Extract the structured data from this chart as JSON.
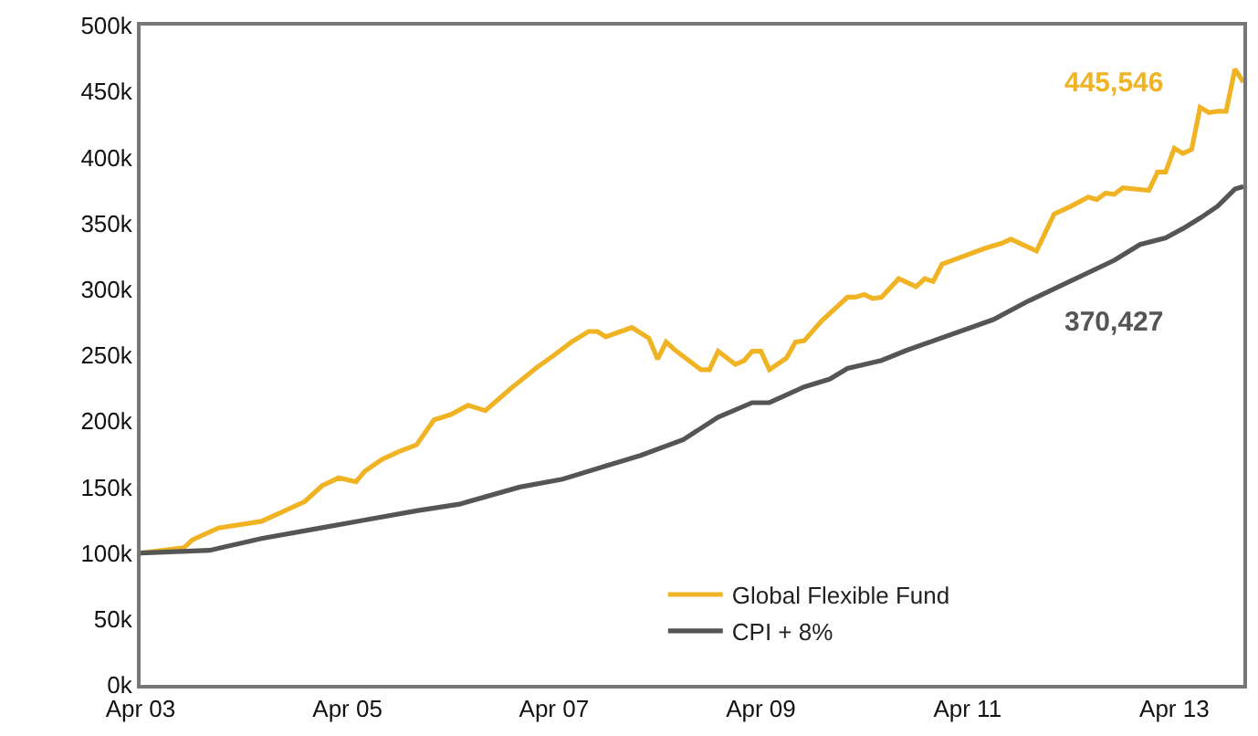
{
  "chart_data": {
    "type": "line",
    "xlim": [
      "2003-04-01",
      "2013-12-01"
    ],
    "xticks": [
      {
        "value": "2003-04-01",
        "label": "Apr 03"
      },
      {
        "value": "2005-04-01",
        "label": "Apr 05"
      },
      {
        "value": "2007-04-01",
        "label": "Apr 07"
      },
      {
        "value": "2009-04-01",
        "label": "Apr 09"
      },
      {
        "value": "2011-04-01",
        "label": "Apr 11"
      },
      {
        "value": "2013-04-01",
        "label": "Apr 13"
      }
    ],
    "ylim": [
      0,
      500000
    ],
    "yticks": [
      {
        "value": 0,
        "label": "0k"
      },
      {
        "value": 50000,
        "label": "50k"
      },
      {
        "value": 100000,
        "label": "100k"
      },
      {
        "value": 150000,
        "label": "150k"
      },
      {
        "value": 200000,
        "label": "200k"
      },
      {
        "value": 250000,
        "label": "250k"
      },
      {
        "value": 300000,
        "label": "300k"
      },
      {
        "value": 350000,
        "label": "350k"
      },
      {
        "value": 400000,
        "label": "400k"
      },
      {
        "value": 450000,
        "label": "450k"
      },
      {
        "value": 500000,
        "label": "500k"
      }
    ],
    "legend": "bottom right",
    "marker": "none",
    "line_style": "solid",
    "annotations": [
      "445,546",
      "370,427"
    ],
    "series": [
      {
        "name": "Global Flexible Fund",
        "color": "#f0b323",
        "x": [
          "2003-04",
          "2003-09",
          "2003-10",
          "2004-01",
          "2004-04",
          "2004-06",
          "2004-08",
          "2004-11",
          "2005-01",
          "2005-03",
          "2005-05",
          "2005-06",
          "2005-08",
          "2005-10",
          "2005-12",
          "2006-02",
          "2006-04",
          "2006-06",
          "2006-08",
          "2006-11",
          "2007-02",
          "2007-04",
          "2007-06",
          "2007-08",
          "2007-09",
          "2007-10",
          "2008-01",
          "2008-03",
          "2008-04",
          "2008-05",
          "2008-06",
          "2008-09",
          "2008-10",
          "2008-11",
          "2009-01",
          "2009-02",
          "2009-03",
          "2009-04",
          "2009-05",
          "2009-07",
          "2009-08",
          "2009-09",
          "2009-11",
          "2010-02",
          "2010-03",
          "2010-04",
          "2010-05",
          "2010-06",
          "2010-08",
          "2010-10",
          "2010-11",
          "2010-12",
          "2011-01",
          "2011-06",
          "2011-08",
          "2011-09",
          "2011-12",
          "2012-02",
          "2012-04",
          "2012-06",
          "2012-07",
          "2012-08",
          "2012-09",
          "2012-10",
          "2013-01",
          "2013-02",
          "2013-03",
          "2013-04",
          "2013-05",
          "2013-06",
          "2013-07",
          "2013-08",
          "2013-09",
          "2013-10",
          "2013-11",
          "2013-12"
        ],
        "values": [
          100000,
          104000,
          110000,
          119000,
          122000,
          124000,
          130000,
          139000,
          151000,
          157000,
          154000,
          162000,
          171000,
          177000,
          182000,
          201000,
          205000,
          212000,
          208000,
          225000,
          241000,
          250000,
          260000,
          268000,
          268000,
          264000,
          271000,
          263000,
          247000,
          260000,
          254000,
          239000,
          239000,
          253000,
          243000,
          246000,
          253000,
          253000,
          239000,
          248000,
          260000,
          261000,
          276000,
          294000,
          294000,
          296000,
          293000,
          294000,
          308000,
          302000,
          308000,
          306000,
          319000,
          331000,
          335000,
          338000,
          329000,
          357000,
          363000,
          370000,
          368000,
          373000,
          372000,
          377000,
          375000,
          389000,
          389000,
          407000,
          403000,
          406000,
          438000,
          434000,
          435000,
          435000,
          467000,
          457000
        ]
      },
      {
        "name": "CPI + 8%",
        "color": "#555555",
        "x": [
          "2003-04",
          "2003-12",
          "2004-06",
          "2004-12",
          "2005-06",
          "2005-12",
          "2006-05",
          "2006-12",
          "2007-05",
          "2007-10",
          "2008-02",
          "2008-07",
          "2008-11",
          "2009-03",
          "2009-05",
          "2009-09",
          "2009-12",
          "2010-02",
          "2010-06",
          "2010-09",
          "2011-07",
          "2011-11",
          "2012-09",
          "2012-12",
          "2013-03",
          "2013-05",
          "2013-07",
          "2013-09",
          "2013-11",
          "2013-12"
        ],
        "values": [
          100000,
          102000,
          111000,
          118000,
          125000,
          132000,
          137000,
          150000,
          156000,
          166000,
          174000,
          186000,
          203000,
          214000,
          214000,
          226000,
          232000,
          240000,
          246000,
          254000,
          277000,
          291000,
          322000,
          334000,
          339000,
          346000,
          354000,
          363000,
          376000,
          378000
        ]
      }
    ]
  }
}
